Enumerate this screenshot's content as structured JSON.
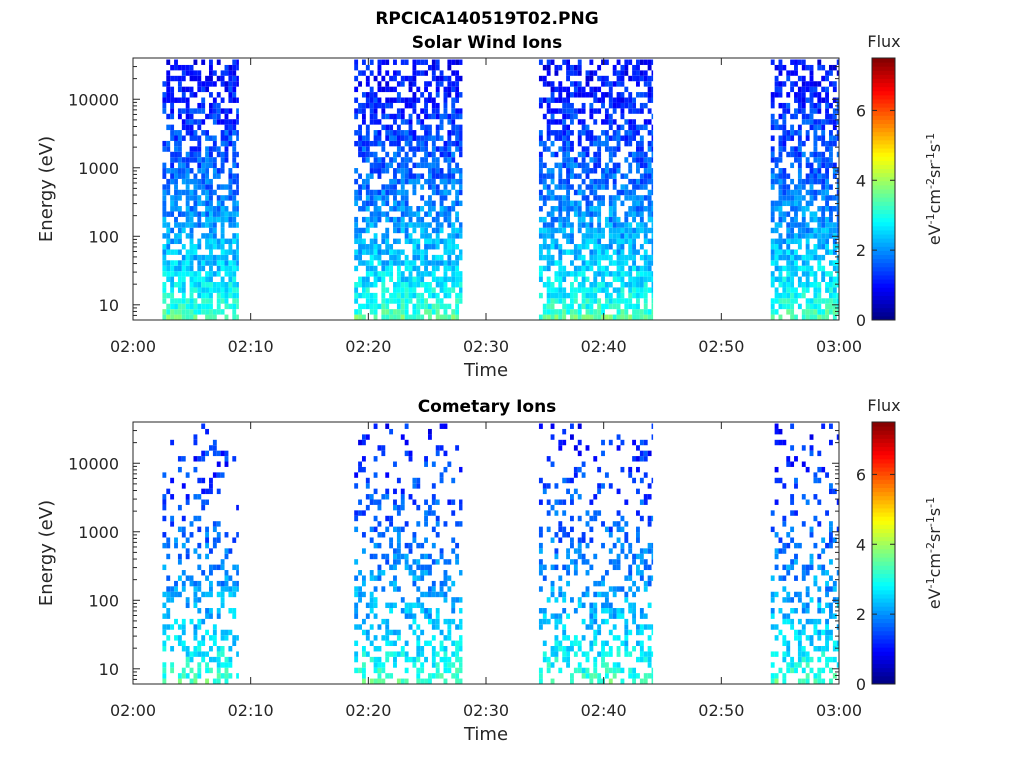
{
  "figure": {
    "title": "RPCICA140519T02.PNG"
  },
  "chart_data": [
    {
      "type": "heatmap",
      "title": "Solar Wind Ions",
      "xlabel": "Time",
      "ylabel": "Energy (eV)",
      "x_ticks": [
        "02:00",
        "02:10",
        "02:20",
        "02:30",
        "02:40",
        "02:50",
        "03:00"
      ],
      "xlim_minutes": [
        0,
        60
      ],
      "y_scale": "log",
      "y_ticks": [
        "10",
        "100",
        "1000",
        "10000"
      ],
      "y_tick_values": [
        10,
        100,
        1000,
        10000
      ],
      "ylim": [
        6,
        40000
      ],
      "colorbar": {
        "label": "Flux",
        "units": "eV-1 cm-2 sr-1 s-1",
        "ticks": [
          "0",
          "2",
          "4",
          "6"
        ],
        "range": [
          0,
          7.5
        ],
        "colormap": "jet"
      },
      "data_intervals_minutes": [
        [
          2.5,
          9.0
        ],
        [
          18.8,
          28.0
        ],
        [
          34.5,
          44.2
        ],
        [
          54.2,
          60.0
        ]
      ],
      "flux_model": {
        "low_energy_flux": 3.5,
        "high_energy_flux": 1.0,
        "density_low": 0.8,
        "density_high": 0.55,
        "max_energy": 38000
      }
    },
    {
      "type": "heatmap",
      "title": "Cometary Ions",
      "xlabel": "Time",
      "ylabel": "Energy (eV)",
      "x_ticks": [
        "02:00",
        "02:10",
        "02:20",
        "02:30",
        "02:40",
        "02:50",
        "03:00"
      ],
      "xlim_minutes": [
        0,
        60
      ],
      "y_scale": "log",
      "y_ticks": [
        "10",
        "100",
        "1000",
        "10000"
      ],
      "y_tick_values": [
        10,
        100,
        1000,
        10000
      ],
      "ylim": [
        6,
        40000
      ],
      "colorbar": {
        "label": "Flux",
        "units": "eV-1 cm-2 sr-1 s-1",
        "ticks": [
          "0",
          "2",
          "4",
          "6"
        ],
        "range": [
          0,
          7.5
        ],
        "colormap": "jet"
      },
      "data_intervals_minutes": [
        [
          2.5,
          9.0
        ],
        [
          18.8,
          28.0
        ],
        [
          34.5,
          44.2
        ],
        [
          54.2,
          60.0
        ]
      ],
      "flux_model": {
        "low_energy_flux": 3.4,
        "high_energy_flux": 1.1,
        "density_low": 0.5,
        "density_high": 0.1,
        "max_energy": 38000
      }
    }
  ]
}
